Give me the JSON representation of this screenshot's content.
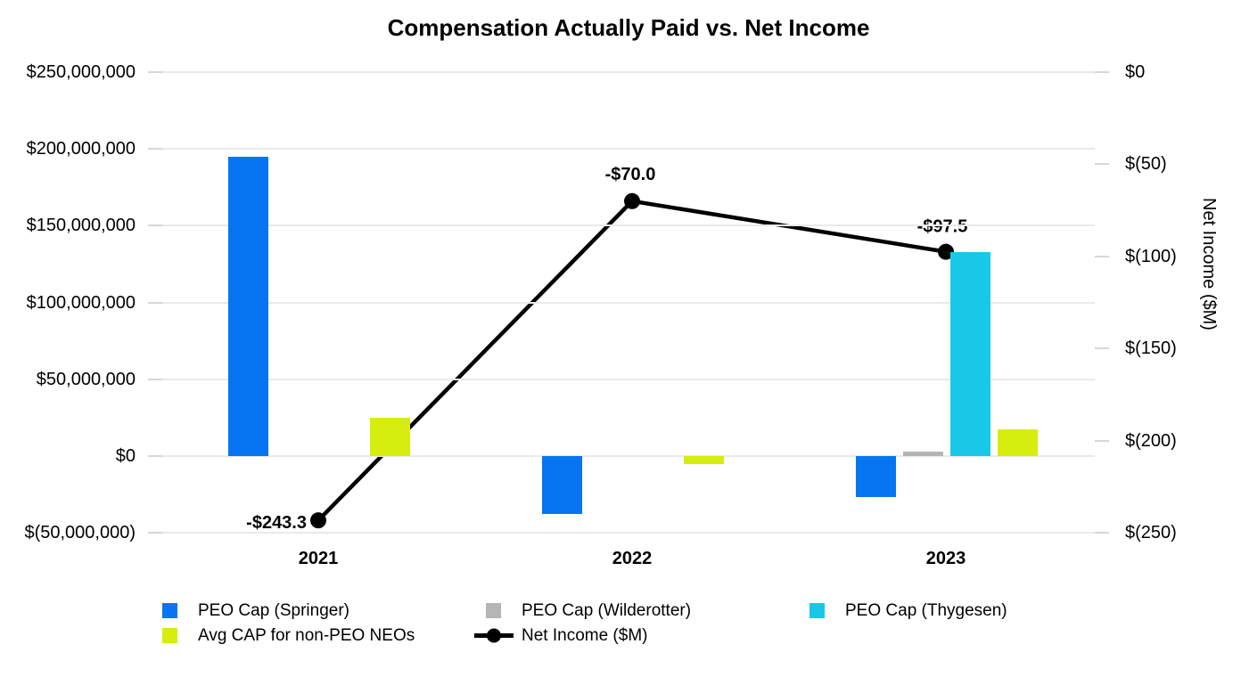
{
  "chart_data": {
    "type": "bar+line combo",
    "title": "Compensation Actually Paid vs. Net Income",
    "categories": [
      "2021",
      "2022",
      "2023"
    ],
    "series": [
      {
        "name": "PEO Cap (Springer)",
        "type": "bar",
        "axis": "left",
        "color": "#0775F2",
        "values": [
          195000000,
          -37500000,
          -26500000
        ]
      },
      {
        "name": "PEO Cap (Wilderotter)",
        "type": "bar",
        "axis": "left",
        "color": "#B5B5B5",
        "values": [
          null,
          null,
          3000000
        ]
      },
      {
        "name": "PEO Cap (Thygesen)",
        "type": "bar",
        "axis": "left",
        "color": "#19C8E8",
        "values": [
          null,
          null,
          133000000
        ]
      },
      {
        "name": "Avg CAP for non-PEO NEOs",
        "type": "bar",
        "axis": "left",
        "color": "#D5EE0F",
        "values": [
          25000000,
          -5000000,
          17500000
        ]
      },
      {
        "name": "Net Income ($M)",
        "type": "line",
        "axis": "right",
        "color": "#000000",
        "values": [
          -243.3,
          -70.0,
          -97.5
        ],
        "point_labels": [
          "-$243.3",
          "-$70.0",
          "-$97.5"
        ]
      }
    ],
    "left_axis": {
      "tick_labels": [
        "$250,000,000",
        "$200,000,000",
        "$150,000,000",
        "$100,000,000",
        "$50,000,000",
        "$0",
        "$(50,000,000)"
      ],
      "tick_values": [
        250000000,
        200000000,
        150000000,
        100000000,
        50000000,
        0,
        -50000000
      ],
      "range": [
        -50000000,
        250000000
      ]
    },
    "right_axis": {
      "title": "Net Income ($M)",
      "tick_labels": [
        "$0",
        "$(50)",
        "$(100)",
        "$(150)",
        "$(200)",
        "$(250)"
      ],
      "tick_values": [
        0,
        -50,
        -100,
        -150,
        -200,
        -250
      ],
      "range": [
        -250,
        0
      ]
    },
    "grid": "horizontal",
    "legend_position": "bottom"
  }
}
